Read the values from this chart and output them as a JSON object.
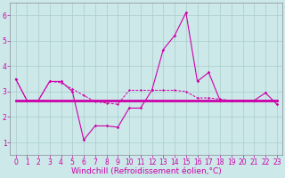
{
  "x": [
    0,
    1,
    2,
    3,
    4,
    5,
    6,
    7,
    8,
    9,
    10,
    11,
    12,
    13,
    14,
    15,
    16,
    17,
    18,
    19,
    20,
    21,
    22,
    23
  ],
  "line_main": [
    3.5,
    2.65,
    2.65,
    3.4,
    3.4,
    3.0,
    1.1,
    1.65,
    1.65,
    1.6,
    2.35,
    2.35,
    3.05,
    4.65,
    5.2,
    6.1,
    3.4,
    3.75,
    2.65,
    2.65,
    2.65,
    2.65,
    2.95,
    2.5
  ],
  "line_upper": [
    3.5,
    2.65,
    2.65,
    3.4,
    3.35,
    3.1,
    2.85,
    2.6,
    2.55,
    2.5,
    3.05,
    3.05,
    3.05,
    3.05,
    3.05,
    3.0,
    2.75,
    2.75,
    2.7,
    2.65,
    2.65,
    2.65,
    2.65,
    2.65
  ],
  "line_flat": [
    2.65,
    2.65,
    2.65,
    2.65,
    2.65,
    2.65,
    2.65,
    2.65,
    2.65,
    2.65,
    2.65,
    2.65,
    2.65,
    2.65,
    2.65,
    2.65,
    2.65,
    2.65,
    2.65,
    2.65,
    2.65,
    2.65,
    2.65,
    2.65
  ],
  "bg_color": "#cce8e8",
  "line_color": "#cc00aa",
  "grid_color": "#aacccc",
  "xlabel": "Windchill (Refroidissement éolien,°C)",
  "ylim": [
    0.5,
    6.5
  ],
  "xlim": [
    -0.5,
    23.5
  ],
  "yticks": [
    1,
    2,
    3,
    4,
    5,
    6
  ],
  "xtick_labels": [
    "0",
    "1",
    "2",
    "3",
    "4",
    "5",
    "6",
    "7",
    "8",
    "9",
    "10",
    "11",
    "12",
    "13",
    "14",
    "15",
    "16",
    "17",
    "18",
    "19",
    "20",
    "21",
    "22",
    "23"
  ],
  "xlabel_fontsize": 6.5,
  "tick_fontsize": 5.5
}
